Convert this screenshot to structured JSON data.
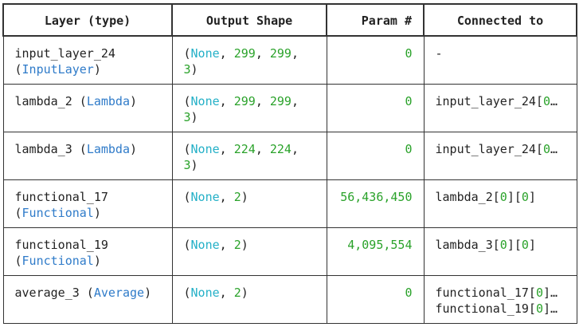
{
  "headers": [
    "Layer (type)",
    "Output Shape",
    "Param #",
    "Connected to"
  ],
  "rows": [
    {
      "layer_name": "input_layer_24",
      "layer_type": "InputLayer",
      "shape": {
        "none": "None",
        "dims": [
          "299",
          "299",
          "3"
        ]
      },
      "params": "0",
      "connected": [
        "-"
      ]
    },
    {
      "layer_name": "lambda_2",
      "layer_type": "Lambda",
      "shape": {
        "none": "None",
        "dims": [
          "299",
          "299",
          "3"
        ]
      },
      "params": "0",
      "connected": [
        "input_layer_24[0…"
      ]
    },
    {
      "layer_name": "lambda_3",
      "layer_type": "Lambda",
      "shape": {
        "none": "None",
        "dims": [
          "224",
          "224",
          "3"
        ]
      },
      "params": "0",
      "connected": [
        "input_layer_24[0…"
      ]
    },
    {
      "layer_name": "functional_17",
      "layer_type": "Functional",
      "shape": {
        "none": "None",
        "dims": [
          "2"
        ]
      },
      "params": "56,436,450",
      "connected": [
        "lambda_2[0][0]"
      ]
    },
    {
      "layer_name": "functional_19",
      "layer_type": "Functional",
      "shape": {
        "none": "None",
        "dims": [
          "2"
        ]
      },
      "params": "4,095,554",
      "connected": [
        "lambda_3[0][0]"
      ]
    },
    {
      "layer_name": "average_3",
      "layer_type": "Average",
      "shape": {
        "none": "None",
        "dims": [
          "2"
        ]
      },
      "params": "0",
      "connected": [
        "functional_17[0]…",
        "functional_19[0]…"
      ]
    }
  ]
}
